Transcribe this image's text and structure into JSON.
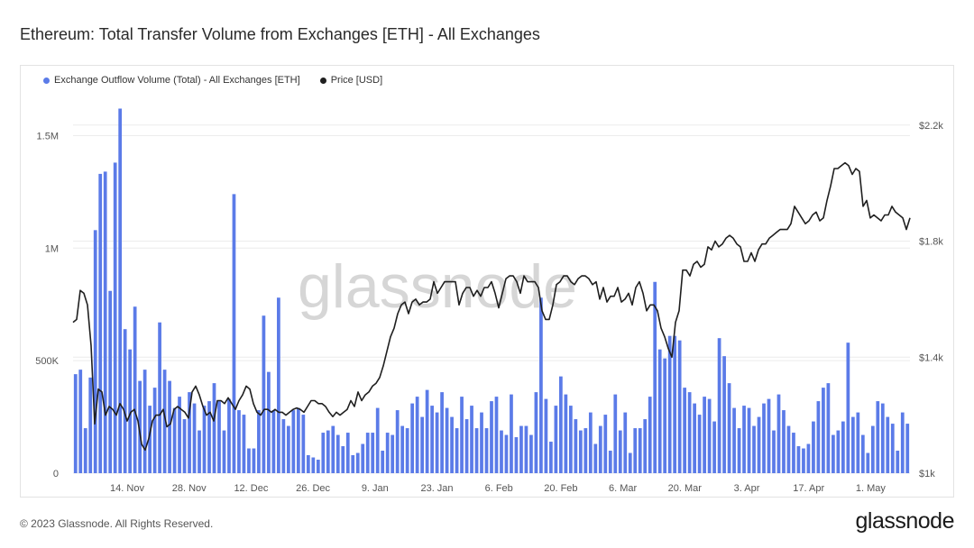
{
  "title": "Ethereum: Total Transfer Volume from Exchanges [ETH] - All Exchanges",
  "footer": {
    "copyright": "© 2023 Glassnode. All Rights Reserved.",
    "logo": "glassnode"
  },
  "watermark": "glassnode",
  "colors": {
    "bars": "#5b7be8",
    "line": "#1f1f1f",
    "grid": "#ececec"
  },
  "chart_data": {
    "type": "bar",
    "legend_position": "top-left",
    "grid": true,
    "x_labels": [
      "14. Nov",
      "28. Nov",
      "12. Dec",
      "26. Dec",
      "9. Jan",
      "23. Jan",
      "6. Feb",
      "20. Feb",
      "6. Mar",
      "20. Mar",
      "3. Apr",
      "17. Apr",
      "1. May"
    ],
    "y_left": {
      "ticks": [
        "0",
        "500K",
        "1M",
        "1.5M"
      ],
      "tick_values": [
        0,
        500000,
        1000000,
        1500000
      ],
      "range": [
        0,
        1650000
      ]
    },
    "y_right": {
      "ticks": [
        "$1k",
        "$1.4k",
        "$1.8k",
        "$2.2k"
      ],
      "tick_values": [
        1000,
        1400,
        1800,
        2200
      ],
      "range": [
        1000,
        2280
      ]
    },
    "series": [
      {
        "name": "Exchange Outflow Volume (Total) - All Exchanges [ETH]",
        "axis": "left",
        "type": "bar",
        "values": [
          440000,
          460000,
          200000,
          425000,
          1080000,
          1330000,
          1340000,
          810000,
          1380000,
          1620000,
          640000,
          550000,
          740000,
          410000,
          460000,
          300000,
          380000,
          670000,
          460000,
          410000,
          290000,
          340000,
          240000,
          360000,
          310000,
          190000,
          300000,
          320000,
          400000,
          320000,
          190000,
          330000,
          1240000,
          280000,
          260000,
          110000,
          110000,
          280000,
          700000,
          450000,
          280000,
          780000,
          240000,
          210000,
          280000,
          290000,
          260000,
          80000,
          70000,
          60000,
          180000,
          190000,
          210000,
          170000,
          120000,
          180000,
          80000,
          90000,
          130000,
          180000,
          180000,
          290000,
          100000,
          180000,
          170000,
          280000,
          210000,
          200000,
          310000,
          340000,
          250000,
          370000,
          300000,
          270000,
          360000,
          290000,
          250000,
          200000,
          340000,
          240000,
          300000,
          200000,
          270000,
          200000,
          320000,
          340000,
          190000,
          170000,
          350000,
          160000,
          210000,
          210000,
          170000,
          360000,
          780000,
          330000,
          140000,
          300000,
          430000,
          350000,
          300000,
          240000,
          190000,
          200000,
          270000,
          130000,
          210000,
          260000,
          100000,
          350000,
          190000,
          270000,
          90000,
          200000,
          200000,
          240000,
          340000,
          850000,
          550000,
          510000,
          610000,
          610000,
          590000,
          380000,
          360000,
          310000,
          260000,
          340000,
          330000,
          230000,
          600000,
          520000,
          400000,
          290000,
          200000,
          300000,
          290000,
          210000,
          250000,
          310000,
          330000,
          190000,
          350000,
          280000,
          210000,
          180000,
          120000,
          110000,
          130000,
          230000,
          320000,
          380000,
          400000,
          170000,
          190000,
          230000,
          580000,
          250000,
          270000,
          170000,
          90000,
          210000,
          320000,
          310000,
          250000,
          220000,
          100000,
          270000,
          220000
        ]
      },
      {
        "name": "Price [USD]",
        "axis": "right",
        "type": "line",
        "values": [
          1520,
          1530,
          1630,
          1620,
          1580,
          1440,
          1170,
          1290,
          1280,
          1200,
          1230,
          1220,
          1200,
          1240,
          1220,
          1180,
          1210,
          1220,
          1180,
          1100,
          1080,
          1120,
          1180,
          1200,
          1200,
          1220,
          1160,
          1170,
          1220,
          1230,
          1220,
          1210,
          1190,
          1280,
          1300,
          1270,
          1230,
          1200,
          1210,
          1180,
          1250,
          1250,
          1240,
          1260,
          1240,
          1220,
          1250,
          1270,
          1300,
          1290,
          1240,
          1210,
          1200,
          1220,
          1220,
          1210,
          1220,
          1210,
          1210,
          1200,
          1210,
          1220,
          1225,
          1220,
          1210,
          1230,
          1250,
          1250,
          1240,
          1240,
          1230,
          1210,
          1195,
          1210,
          1200,
          1210,
          1220,
          1250,
          1230,
          1280,
          1250,
          1270,
          1280,
          1300,
          1310,
          1330,
          1370,
          1420,
          1470,
          1500,
          1550,
          1580,
          1590,
          1550,
          1590,
          1600,
          1580,
          1590,
          1590,
          1600,
          1660,
          1620,
          1640,
          1660,
          1660,
          1660,
          1660,
          1580,
          1620,
          1640,
          1640,
          1610,
          1630,
          1610,
          1640,
          1640,
          1660,
          1620,
          1570,
          1620,
          1670,
          1680,
          1680,
          1660,
          1620,
          1680,
          1660,
          1660,
          1660,
          1640,
          1560,
          1530,
          1530,
          1580,
          1650,
          1660,
          1680,
          1680,
          1660,
          1650,
          1670,
          1680,
          1680,
          1670,
          1650,
          1660,
          1600,
          1640,
          1590,
          1610,
          1610,
          1640,
          1590,
          1600,
          1620,
          1580,
          1640,
          1660,
          1620,
          1560,
          1580,
          1580,
          1560,
          1500,
          1470,
          1430,
          1400,
          1520,
          1560,
          1700,
          1700,
          1680,
          1720,
          1730,
          1710,
          1720,
          1780,
          1770,
          1800,
          1780,
          1790,
          1810,
          1820,
          1810,
          1790,
          1780,
          1730,
          1730,
          1760,
          1730,
          1770,
          1790,
          1790,
          1810,
          1820,
          1830,
          1840,
          1840,
          1840,
          1860,
          1920,
          1900,
          1880,
          1860,
          1870,
          1890,
          1900,
          1870,
          1880,
          1940,
          1990,
          2050,
          2050,
          2060,
          2070,
          2060,
          2030,
          2050,
          2040,
          1920,
          1940,
          1880,
          1890,
          1880,
          1870,
          1890,
          1890,
          1920,
          1900,
          1890,
          1880,
          1840,
          1880
        ]
      }
    ]
  }
}
